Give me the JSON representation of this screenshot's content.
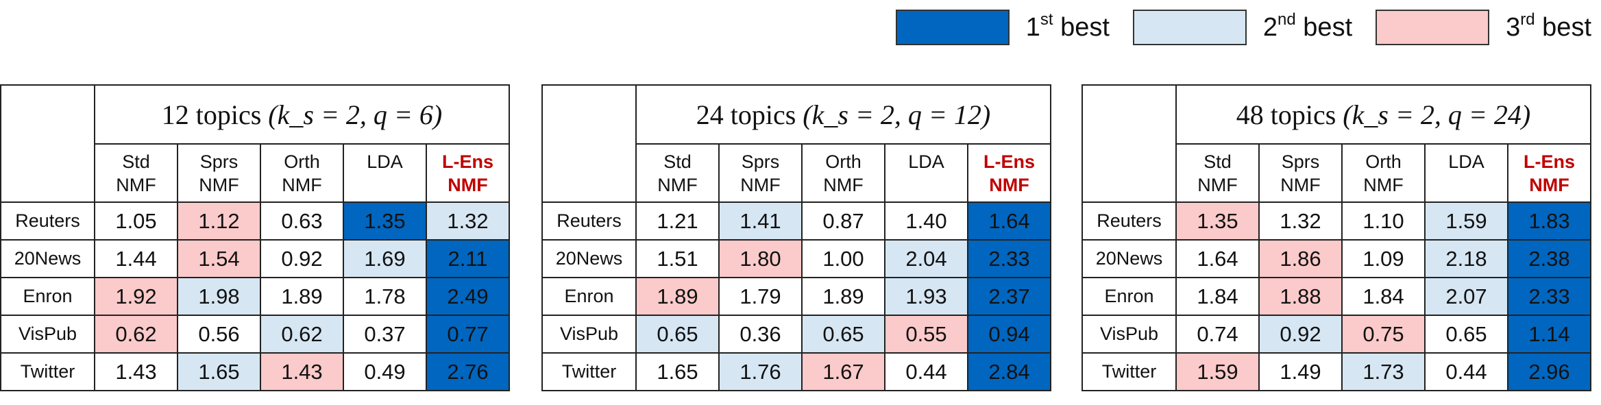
{
  "legend": [
    {
      "ordinal": "1",
      "suffix": "st",
      "label": "best",
      "color": "#0066bf"
    },
    {
      "ordinal": "2",
      "suffix": "nd",
      "label": "best",
      "color": "#d6e6f3"
    },
    {
      "ordinal": "3",
      "suffix": "rd",
      "label": "best",
      "color": "#fbcaca"
    }
  ],
  "colors": {
    "rank1": "#0066bf",
    "rank2": "#d6e6f3",
    "rank3": "#fbcaca",
    "highlight_header": "#c00000"
  },
  "chart_data": [
    {
      "type": "table",
      "title": "12 topics",
      "title_params": "(k_s = 2, q = 6)",
      "columns": [
        [
          "Std",
          "NMF"
        ],
        [
          "Sprs",
          "NMF"
        ],
        [
          "Orth",
          "NMF"
        ],
        [
          "LDA",
          ""
        ],
        [
          "L-Ens",
          "NMF"
        ]
      ],
      "rows": [
        {
          "name": "Reuters",
          "values": [
            "1.05",
            "1.12",
            "0.63",
            "1.35",
            "1.32"
          ],
          "ranks": [
            0,
            3,
            0,
            1,
            2
          ]
        },
        {
          "name": "20News",
          "values": [
            "1.44",
            "1.54",
            "0.92",
            "1.69",
            "2.11"
          ],
          "ranks": [
            0,
            3,
            0,
            2,
            1
          ]
        },
        {
          "name": "Enron",
          "values": [
            "1.92",
            "1.98",
            "1.89",
            "1.78",
            "2.49"
          ],
          "ranks": [
            3,
            2,
            0,
            0,
            1
          ]
        },
        {
          "name": "VisPub",
          "values": [
            "0.62",
            "0.56",
            "0.62",
            "0.37",
            "0.77"
          ],
          "ranks": [
            3,
            0,
            2,
            0,
            1
          ]
        },
        {
          "name": "Twitter",
          "values": [
            "1.43",
            "1.65",
            "1.43",
            "0.49",
            "2.76"
          ],
          "ranks": [
            0,
            2,
            3,
            0,
            1
          ]
        }
      ]
    },
    {
      "type": "table",
      "title": "24 topics",
      "title_params": "(k_s = 2, q = 12)",
      "columns": [
        [
          "Std",
          "NMF"
        ],
        [
          "Sprs",
          "NMF"
        ],
        [
          "Orth",
          "NMF"
        ],
        [
          "LDA",
          ""
        ],
        [
          "L-Ens",
          "NMF"
        ]
      ],
      "rows": [
        {
          "name": "Reuters",
          "values": [
            "1.21",
            "1.41",
            "0.87",
            "1.40",
            "1.64"
          ],
          "ranks": [
            0,
            2,
            0,
            0,
            1
          ]
        },
        {
          "name": "20News",
          "values": [
            "1.51",
            "1.80",
            "1.00",
            "2.04",
            "2.33"
          ],
          "ranks": [
            0,
            3,
            0,
            2,
            1
          ]
        },
        {
          "name": "Enron",
          "values": [
            "1.89",
            "1.79",
            "1.89",
            "1.93",
            "2.37"
          ],
          "ranks": [
            3,
            0,
            0,
            2,
            1
          ]
        },
        {
          "name": "VisPub",
          "values": [
            "0.65",
            "0.36",
            "0.65",
            "0.55",
            "0.94"
          ],
          "ranks": [
            2,
            0,
            2,
            3,
            1
          ]
        },
        {
          "name": "Twitter",
          "values": [
            "1.65",
            "1.76",
            "1.67",
            "0.44",
            "2.84"
          ],
          "ranks": [
            0,
            2,
            3,
            0,
            1
          ]
        }
      ]
    },
    {
      "type": "table",
      "title": "48 topics",
      "title_params": "(k_s = 2, q = 24)",
      "columns": [
        [
          "Std",
          "NMF"
        ],
        [
          "Sprs",
          "NMF"
        ],
        [
          "Orth",
          "NMF"
        ],
        [
          "LDA",
          ""
        ],
        [
          "L-Ens",
          "NMF"
        ]
      ],
      "rows": [
        {
          "name": "Reuters",
          "values": [
            "1.35",
            "1.32",
            "1.10",
            "1.59",
            "1.83"
          ],
          "ranks": [
            3,
            0,
            0,
            2,
            1
          ]
        },
        {
          "name": "20News",
          "values": [
            "1.64",
            "1.86",
            "1.09",
            "2.18",
            "2.38"
          ],
          "ranks": [
            0,
            3,
            0,
            2,
            1
          ]
        },
        {
          "name": "Enron",
          "values": [
            "1.84",
            "1.88",
            "1.84",
            "2.07",
            "2.33"
          ],
          "ranks": [
            0,
            3,
            0,
            2,
            1
          ]
        },
        {
          "name": "VisPub",
          "values": [
            "0.74",
            "0.92",
            "0.75",
            "0.65",
            "1.14"
          ],
          "ranks": [
            0,
            2,
            3,
            0,
            1
          ]
        },
        {
          "name": "Twitter",
          "values": [
            "1.59",
            "1.49",
            "1.73",
            "0.44",
            "2.96"
          ],
          "ranks": [
            3,
            0,
            2,
            0,
            1
          ]
        }
      ]
    }
  ]
}
